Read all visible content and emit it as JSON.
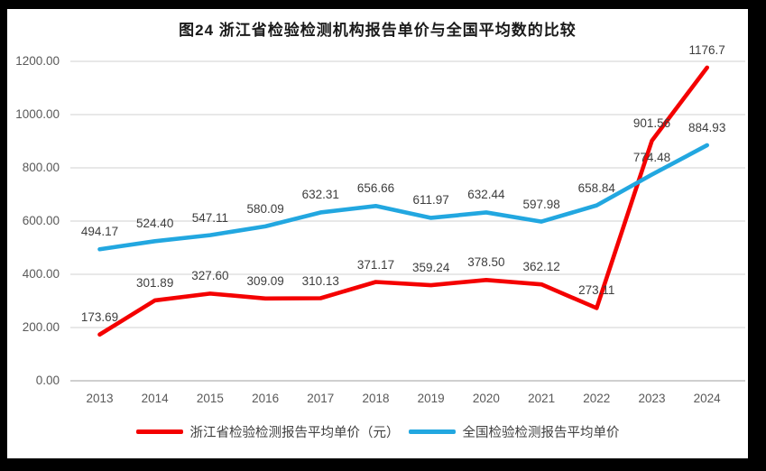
{
  "title": "图24  浙江省检验检测机构报告单价与全国平均数的比较",
  "chart_data": {
    "type": "line",
    "categories": [
      "2013",
      "2014",
      "2015",
      "2016",
      "2017",
      "2018",
      "2019",
      "2020",
      "2021",
      "2022",
      "2023",
      "2024"
    ],
    "series": [
      {
        "name": "浙江省检验检测报告平均单价（元）",
        "color": "#f40000",
        "values": [
          173.69,
          301.89,
          327.6,
          309.09,
          310.13,
          371.17,
          359.24,
          378.5,
          362.12,
          273.11,
          901.56,
          1176.7
        ],
        "labels": [
          "173.69",
          "301.89",
          "327.60",
          "309.09",
          "310.13",
          "371.17",
          "359.24",
          "378.50",
          "362.12",
          "273.11",
          "901.56",
          "1176.7"
        ]
      },
      {
        "name": "全国检验检测报告平均单价",
        "color": "#22a7e0",
        "values": [
          494.17,
          524.4,
          547.11,
          580.09,
          632.31,
          656.66,
          611.97,
          632.44,
          597.98,
          658.84,
          774.48,
          884.93
        ],
        "labels": [
          "494.17",
          "524.40",
          "547.11",
          "580.09",
          "632.31",
          "656.66",
          "611.97",
          "632.44",
          "597.98",
          "658.84",
          "774.48",
          "884.93"
        ]
      }
    ],
    "xlabel": "",
    "ylabel": "",
    "ylim": [
      0,
      1200
    ],
    "y_tick_step": 200,
    "y_ticks": [
      "0.00",
      "200.00",
      "400.00",
      "600.00",
      "800.00",
      "1000.00",
      "1200.00"
    ],
    "grid": true,
    "gridline_color": "#d9d9d9",
    "axis_line_color": "#bfbfbf",
    "data_labels": true,
    "legend_position": "bottom"
  }
}
